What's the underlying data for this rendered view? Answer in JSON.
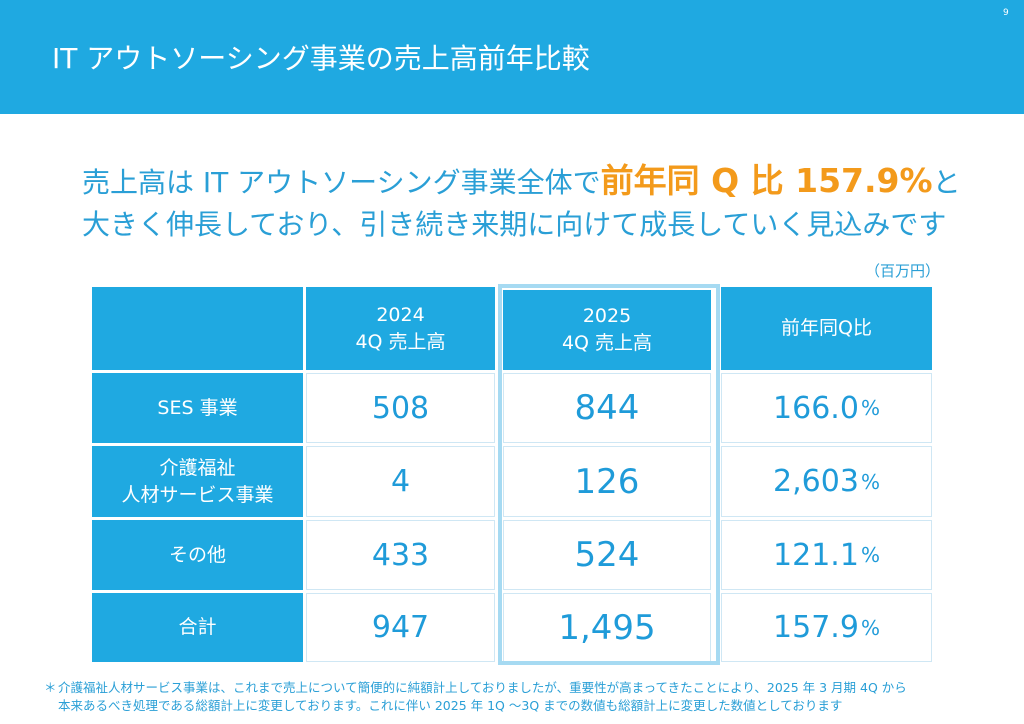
{
  "slide": {
    "title": "IT アウトソーシング事業の売上高前年比較",
    "page_number": "9"
  },
  "headline": {
    "line1_pre": "売上高は IT アウトソーシング事業全体で",
    "line1_highlight": "前年同 Q 比 157.9%",
    "line1_post": "と",
    "line2": "大きく伸長しており、引き続き来期に向けて成長していく見込みです"
  },
  "unit": "（百万円）",
  "table": {
    "headers": {
      "y2024_line1": "2024",
      "y2024_line2": "4Q 売上高",
      "y2025_line1": "2025",
      "y2025_line2": "4Q 売上高",
      "ratio": "前年同Q比"
    },
    "rows": [
      {
        "label": "SES 事業",
        "label2": "",
        "v2024": "508",
        "v2025": "844",
        "ratio": "166.0",
        "pct": "%"
      },
      {
        "label": "介護福祉",
        "label2": "人材サービス事業",
        "v2024": "4",
        "v2025": "126",
        "ratio": "2,603",
        "pct": "%"
      },
      {
        "label": "その他",
        "label2": "",
        "v2024": "433",
        "v2025": "524",
        "ratio": "121.1",
        "pct": "%"
      },
      {
        "label": "合計",
        "label2": "",
        "v2024": "947",
        "v2025": "1,495",
        "ratio": "157.9",
        "pct": "%"
      }
    ]
  },
  "footnote": {
    "marker": "＊",
    "line1": "介護福祉人材サービス事業は、これまで売上について簡便的に純額計上しておりましたが、重要性が高まってきたことにより、2025 年 3 月期 4Q から",
    "line2": "本来あるべき処理である総額計上に変更しております。これに伴い 2025 年 1Q ～3Q までの数値も総額計上に変更した数値としております"
  },
  "colors": {
    "header_bg": "#1fa9e1",
    "accent_text": "#2a9fd6",
    "highlight": "#f39a1b",
    "frame": "#a6daf2"
  }
}
